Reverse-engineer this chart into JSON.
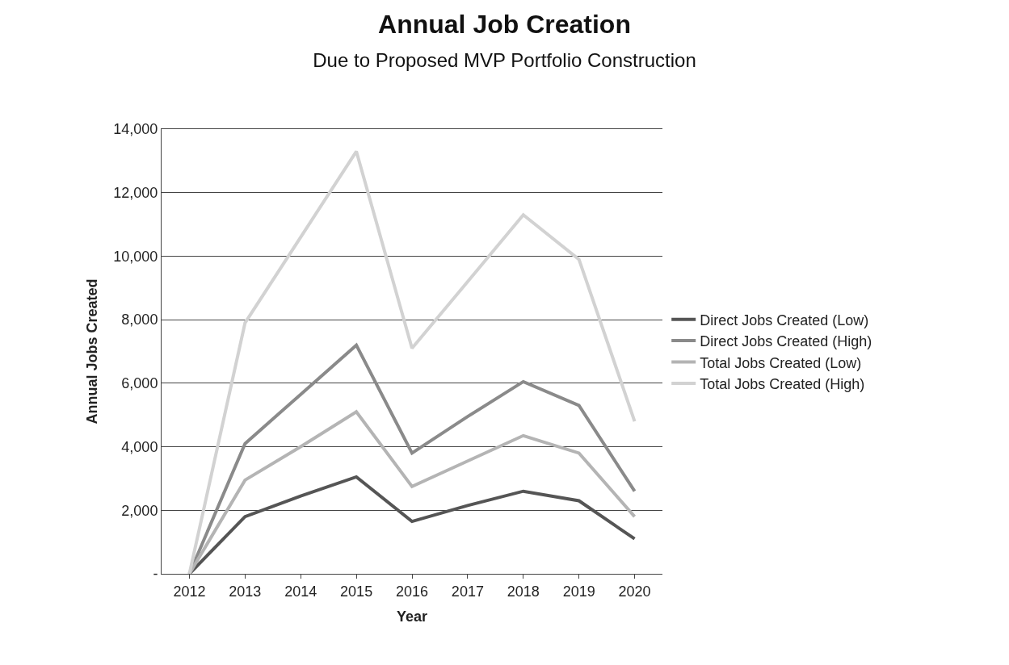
{
  "chart_data": {
    "type": "line",
    "title": "Annual Job Creation",
    "subtitle": "Due to Proposed MVP Portfolio Construction",
    "xlabel": "Year",
    "ylabel": "Annual Jobs Created",
    "categories": [
      "2012",
      "2013",
      "2014",
      "2015",
      "2016",
      "2017",
      "2018",
      "2019",
      "2020"
    ],
    "series": [
      {
        "name": "Direct Jobs Created (Low)",
        "color": "#555555",
        "values": [
          0,
          1800,
          2450,
          3050,
          1650,
          2150,
          2600,
          2300,
          1100
        ]
      },
      {
        "name": "Direct Jobs Created (High)",
        "color": "#8a8a8a",
        "values": [
          0,
          4100,
          5650,
          7200,
          3800,
          4950,
          6050,
          5300,
          2600
        ]
      },
      {
        "name": "Total Jobs Created (Low)",
        "color": "#b4b4b4",
        "values": [
          0,
          2950,
          4000,
          5100,
          2750,
          3550,
          4350,
          3800,
          1800
        ]
      },
      {
        "name": "Total Jobs Created (High)",
        "color": "#d2d2d2",
        "values": [
          0,
          7900,
          10600,
          13300,
          7100,
          9200,
          11300,
          9900,
          4800
        ]
      }
    ],
    "ylim": [
      0,
      14000
    ],
    "yticks": [
      {
        "value": 0,
        "label": "-"
      },
      {
        "value": 2000,
        "label": "2,000"
      },
      {
        "value": 4000,
        "label": "4,000"
      },
      {
        "value": 6000,
        "label": "6,000"
      },
      {
        "value": 8000,
        "label": "8,000"
      },
      {
        "value": 10000,
        "label": "10,000"
      },
      {
        "value": 12000,
        "label": "12,000"
      },
      {
        "value": 14000,
        "label": "14,000"
      }
    ],
    "grid": "y",
    "legend": "right",
    "marker": "none",
    "line_style": "solid"
  }
}
